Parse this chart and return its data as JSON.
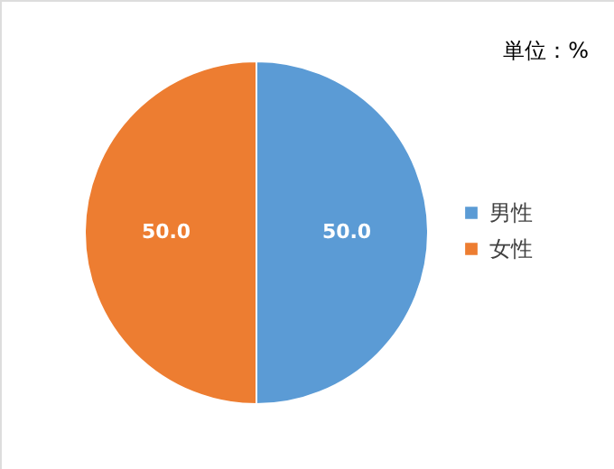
{
  "chart_data": {
    "type": "pie",
    "categories": [
      "男性",
      "女性"
    ],
    "values": [
      50.0,
      50.0
    ],
    "colors": [
      "#5b9bd5",
      "#ed7d31"
    ],
    "value_labels": [
      "50.0",
      "50.0"
    ],
    "annotations": [
      "単位：%"
    ],
    "legend": "right"
  }
}
